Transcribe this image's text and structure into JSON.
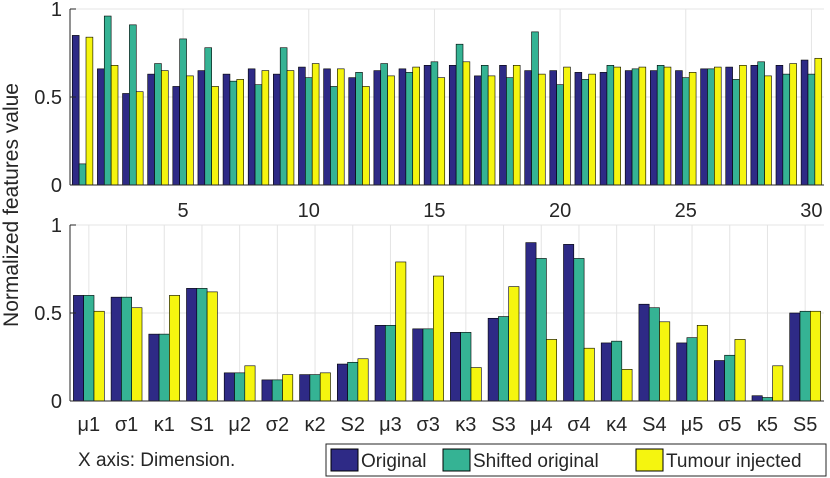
{
  "figure": {
    "ylabel": "Normalized features value",
    "x_axis_note": "X axis: Dimension."
  },
  "legend": [
    {
      "label": "Original",
      "color": "#2e2a86"
    },
    {
      "label": "Shifted original",
      "color": "#35b394"
    },
    {
      "label": "Tumour injected",
      "color": "#f5f50f"
    }
  ],
  "chart_data": [
    {
      "type": "bar",
      "title": "",
      "xlabel": "",
      "ylabel": "Normalized features value",
      "ylim": [
        0,
        1
      ],
      "yticks": [
        "0",
        "0.5",
        "1"
      ],
      "grid": true,
      "x": [
        1,
        2,
        3,
        4,
        5,
        6,
        7,
        8,
        9,
        10,
        11,
        12,
        13,
        14,
        15,
        16,
        17,
        18,
        19,
        20,
        21,
        22,
        23,
        24,
        25,
        26,
        27,
        28,
        29,
        30
      ],
      "xtick_labels": [
        "5",
        "10",
        "15",
        "20",
        "25",
        "30"
      ],
      "xtick_positions": [
        5,
        10,
        15,
        20,
        25,
        30
      ],
      "series": [
        {
          "name": "Original",
          "values": [
            0.85,
            0.66,
            0.52,
            0.63,
            0.56,
            0.65,
            0.63,
            0.66,
            0.63,
            0.67,
            0.66,
            0.61,
            0.65,
            0.66,
            0.68,
            0.68,
            0.62,
            0.68,
            0.65,
            0.65,
            0.64,
            0.64,
            0.65,
            0.65,
            0.65,
            0.66,
            0.67,
            0.68,
            0.68,
            0.71
          ]
        },
        {
          "name": "Shifted original",
          "values": [
            0.12,
            0.96,
            0.91,
            0.69,
            0.83,
            0.78,
            0.59,
            0.57,
            0.78,
            0.61,
            0.56,
            0.64,
            0.69,
            0.64,
            0.7,
            0.8,
            0.68,
            0.61,
            0.87,
            0.57,
            0.6,
            0.68,
            0.66,
            0.68,
            0.61,
            0.66,
            0.6,
            0.7,
            0.63,
            0.63
          ]
        },
        {
          "name": "Tumour injected",
          "values": [
            0.84,
            0.68,
            0.53,
            0.65,
            0.62,
            0.56,
            0.6,
            0.65,
            0.65,
            0.69,
            0.66,
            0.56,
            0.62,
            0.67,
            0.61,
            0.7,
            0.62,
            0.68,
            0.63,
            0.67,
            0.63,
            0.67,
            0.67,
            0.67,
            0.64,
            0.67,
            0.68,
            0.62,
            0.69,
            0.72
          ]
        }
      ]
    },
    {
      "type": "bar",
      "title": "",
      "xlabel": "X axis: Dimension.",
      "ylabel": "Normalized features value",
      "ylim": [
        0,
        1
      ],
      "yticks": [
        "0",
        "0.5",
        "1"
      ],
      "grid": true,
      "categories": [
        "μ1",
        "σ1",
        "κ1",
        "S1",
        "μ2",
        "σ2",
        "κ2",
        "S2",
        "μ3",
        "σ3",
        "κ3",
        "S3",
        "μ4",
        "σ4",
        "κ4",
        "S4",
        "μ5",
        "σ5",
        "κ5",
        "S5"
      ],
      "series": [
        {
          "name": "Original",
          "values": [
            0.6,
            0.59,
            0.38,
            0.64,
            0.16,
            0.12,
            0.15,
            0.21,
            0.43,
            0.41,
            0.39,
            0.47,
            0.9,
            0.89,
            0.33,
            0.55,
            0.33,
            0.23,
            0.03,
            0.5
          ]
        },
        {
          "name": "Shifted original",
          "values": [
            0.6,
            0.59,
            0.38,
            0.64,
            0.16,
            0.12,
            0.15,
            0.22,
            0.43,
            0.41,
            0.39,
            0.48,
            0.81,
            0.81,
            0.34,
            0.53,
            0.36,
            0.26,
            0.02,
            0.51
          ]
        },
        {
          "name": "Tumour injected",
          "values": [
            0.51,
            0.53,
            0.6,
            0.62,
            0.2,
            0.15,
            0.16,
            0.24,
            0.79,
            0.71,
            0.19,
            0.65,
            0.35,
            0.3,
            0.18,
            0.45,
            0.43,
            0.35,
            0.2,
            0.51
          ]
        }
      ]
    }
  ]
}
